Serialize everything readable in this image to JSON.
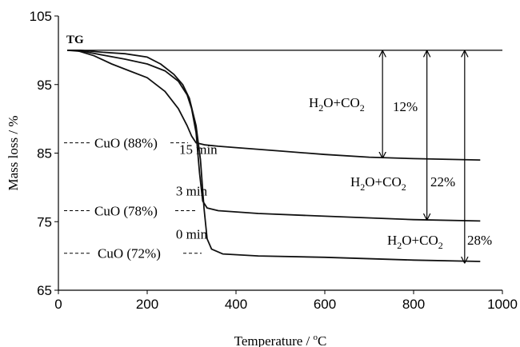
{
  "chart_data": {
    "type": "line",
    "title": "",
    "panel_label": "TG",
    "xlabel_main": "Temperature / ",
    "xlabel_sup": "o",
    "xlabel_unit": "C",
    "ylabel": "Mass loss / %",
    "xlim": [
      0,
      1000
    ],
    "ylim": [
      65,
      105
    ],
    "xticks": [
      0,
      200,
      400,
      600,
      800,
      1000
    ],
    "yticks": [
      65,
      75,
      85,
      95,
      105
    ],
    "grid": false,
    "reference_line": {
      "y": 100
    },
    "series": [
      {
        "name": "15 min",
        "points": [
          [
            20,
            100
          ],
          [
            40,
            100
          ],
          [
            80,
            99.2
          ],
          [
            120,
            98
          ],
          [
            160,
            97
          ],
          [
            200,
            96
          ],
          [
            240,
            94
          ],
          [
            270,
            91.5
          ],
          [
            290,
            89
          ],
          [
            300,
            87.5
          ],
          [
            310,
            86.5
          ],
          [
            330,
            86.2
          ],
          [
            360,
            86
          ],
          [
            400,
            85.8
          ],
          [
            500,
            85.3
          ],
          [
            600,
            84.8
          ],
          [
            700,
            84.4
          ],
          [
            800,
            84.2
          ],
          [
            950,
            84
          ]
        ]
      },
      {
        "name": "3 min",
        "points": [
          [
            20,
            100
          ],
          [
            60,
            99.8
          ],
          [
            100,
            99.3
          ],
          [
            150,
            98.7
          ],
          [
            200,
            98
          ],
          [
            240,
            97
          ],
          [
            270,
            95.5
          ],
          [
            290,
            93.5
          ],
          [
            300,
            91.5
          ],
          [
            310,
            88
          ],
          [
            318,
            82
          ],
          [
            325,
            78
          ],
          [
            335,
            77
          ],
          [
            360,
            76.6
          ],
          [
            450,
            76.2
          ],
          [
            600,
            75.8
          ],
          [
            800,
            75.3
          ],
          [
            950,
            75.1
          ]
        ]
      },
      {
        "name": "0 min",
        "points": [
          [
            20,
            100
          ],
          [
            50,
            100
          ],
          [
            100,
            99.7
          ],
          [
            150,
            99.5
          ],
          [
            200,
            99
          ],
          [
            230,
            98
          ],
          [
            260,
            96.5
          ],
          [
            280,
            95
          ],
          [
            295,
            93
          ],
          [
            310,
            89
          ],
          [
            320,
            84
          ],
          [
            328,
            77
          ],
          [
            335,
            72.5
          ],
          [
            345,
            71
          ],
          [
            370,
            70.3
          ],
          [
            450,
            70
          ],
          [
            600,
            69.8
          ],
          [
            800,
            69.4
          ],
          [
            950,
            69.2
          ]
        ]
      }
    ],
    "arrows": [
      {
        "x": 730,
        "y_top": 100,
        "y_bottom": 84.2,
        "label_main": "H",
        "label_sub": "2",
        "label_rest": "O+CO",
        "label_sub2": "2",
        "pct": "12%"
      },
      {
        "x": 830,
        "y_top": 100,
        "y_bottom": 75.2,
        "label_main": "H",
        "label_sub": "2",
        "label_rest": "O+CO",
        "label_sub2": "2",
        "pct": "22%"
      },
      {
        "x": 915,
        "y_top": 100,
        "y_bottom": 68.9,
        "label_main": "H",
        "label_sub": "2",
        "label_rest": "O+CO",
        "label_sub2": "2",
        "pct": "28%"
      }
    ],
    "series_labels": [
      "15 min",
      "3 min",
      "0 min"
    ],
    "cuo_labels": [
      {
        "text": "CuO (88%)",
        "y": 86.5
      },
      {
        "text": "CuO (78%)",
        "y": 76.6
      },
      {
        "text": "CuO (72%)",
        "y": 70.4
      }
    ]
  }
}
